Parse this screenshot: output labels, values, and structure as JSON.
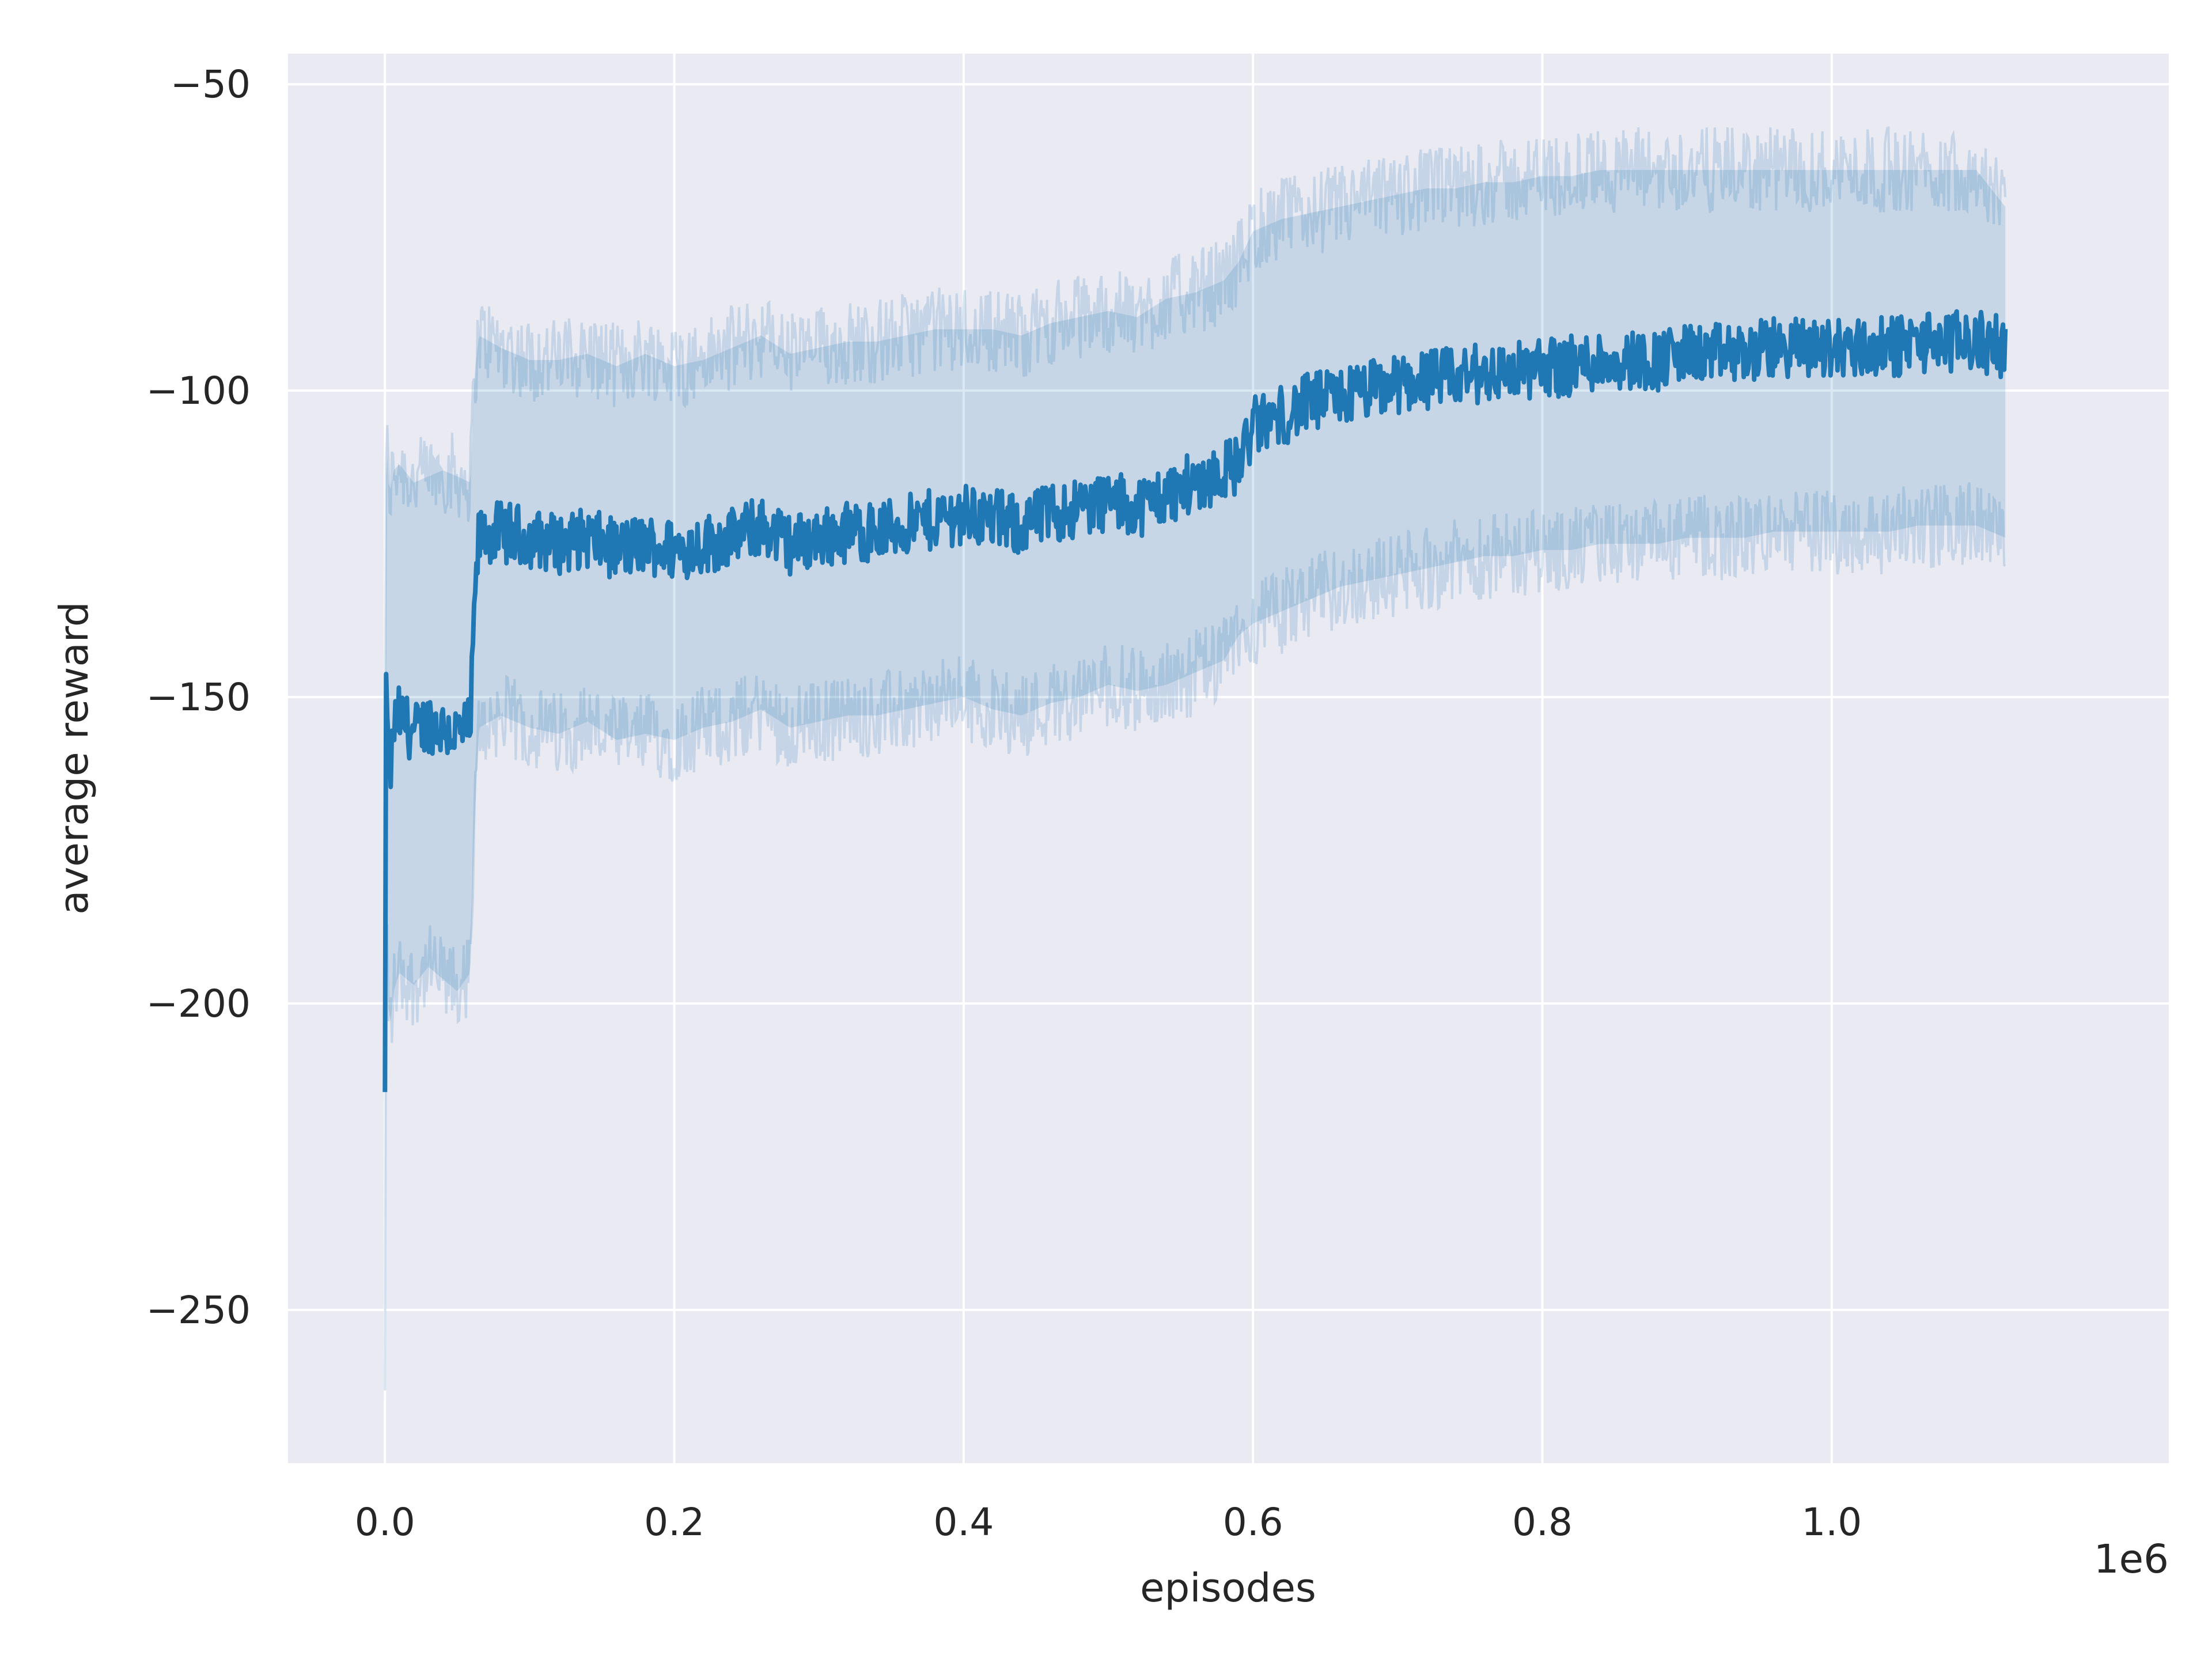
{
  "chart_data": {
    "type": "line",
    "title": "",
    "xlabel": "episodes",
    "ylabel": "average reward",
    "x_offset_label": "1e6",
    "xlim": [
      -0.067,
      1.233
    ],
    "ylim": [
      -275,
      -45
    ],
    "x_ticks": [
      0.0,
      0.2,
      0.4,
      0.6,
      0.8,
      1.0
    ],
    "x_tick_labels": [
      "0.0",
      "0.2",
      "0.4",
      "0.6",
      "0.8",
      "1.0"
    ],
    "y_ticks": [
      -50,
      -100,
      -150,
      -200,
      -250
    ],
    "y_tick_labels": [
      "−50",
      "−100",
      "−150",
      "−200",
      "−250"
    ],
    "grid": true,
    "legend": "none",
    "colors": {
      "line": "#1f77b4",
      "band": "#1f77b4",
      "background": "#eaeaf2",
      "grid": "#ffffff"
    },
    "series": [
      {
        "x": [
          0.0,
          0.001,
          0.002,
          0.004,
          0.006,
          0.01,
          0.02,
          0.03,
          0.04,
          0.05,
          0.059,
          0.062,
          0.065,
          0.08,
          0.1,
          0.12,
          0.14,
          0.16,
          0.18,
          0.2,
          0.22,
          0.24,
          0.26,
          0.28,
          0.3,
          0.32,
          0.34,
          0.36,
          0.38,
          0.4,
          0.42,
          0.44,
          0.46,
          0.48,
          0.5,
          0.52,
          0.54,
          0.56,
          0.58,
          0.59,
          0.6,
          0.62,
          0.64,
          0.66,
          0.68,
          0.7,
          0.72,
          0.74,
          0.76,
          0.78,
          0.8,
          0.82,
          0.84,
          0.86,
          0.88,
          0.9,
          0.92,
          0.94,
          0.96,
          0.98,
          1.0,
          1.02,
          1.04,
          1.06,
          1.08,
          1.1,
          1.12
        ],
        "y": [
          -216,
          -135,
          -160,
          -162,
          -155,
          -153,
          -156,
          -154,
          -155,
          -156,
          -155,
          -135,
          -124,
          -123,
          -124,
          -125,
          -124,
          -126,
          -125,
          -126,
          -125,
          -124,
          -122,
          -125,
          -124,
          -123,
          -123,
          -122,
          -121,
          -120,
          -121,
          -122,
          -120,
          -119,
          -118,
          -119,
          -117,
          -115,
          -113,
          -112,
          -106,
          -104,
          -102,
          -101,
          -100,
          -99,
          -98,
          -98,
          -97,
          -97,
          -96,
          -96,
          -95,
          -95,
          -95,
          -94,
          -94,
          -94,
          -93,
          -93,
          -93,
          -93,
          -93,
          -92,
          -92,
          -92,
          -93
        ],
        "upper": [
          -150,
          -105,
          -115,
          -116,
          -113,
          -112,
          -115,
          -114,
          -113,
          -114,
          -115,
          -97,
          -91,
          -93,
          -95,
          -95,
          -94,
          -96,
          -94,
          -96,
          -95,
          -93,
          -91,
          -94,
          -93,
          -92,
          -92,
          -91,
          -90,
          -90,
          -90,
          -91,
          -89,
          -88,
          -87,
          -88,
          -85,
          -84,
          -82,
          -79,
          -74,
          -72,
          -71,
          -70,
          -69,
          -68,
          -67,
          -67,
          -66,
          -66,
          -65,
          -65,
          -64,
          -64,
          -64,
          -64,
          -64,
          -64,
          -64,
          -64,
          -64,
          -64,
          -64,
          -64,
          -64,
          -64,
          -70
        ],
        "lower": [
          -265,
          -175,
          -200,
          -203,
          -198,
          -195,
          -197,
          -194,
          -196,
          -198,
          -195,
          -170,
          -155,
          -153,
          -155,
          -156,
          -154,
          -157,
          -156,
          -157,
          -155,
          -154,
          -152,
          -155,
          -154,
          -153,
          -153,
          -152,
          -151,
          -150,
          -152,
          -153,
          -151,
          -150,
          -148,
          -149,
          -148,
          -146,
          -144,
          -140,
          -138,
          -136,
          -134,
          -132,
          -131,
          -130,
          -129,
          -128,
          -127,
          -127,
          -126,
          -126,
          -125,
          -125,
          -125,
          -124,
          -124,
          -124,
          -123,
          -123,
          -123,
          -123,
          -123,
          -122,
          -122,
          -122,
          -124
        ]
      }
    ]
  }
}
